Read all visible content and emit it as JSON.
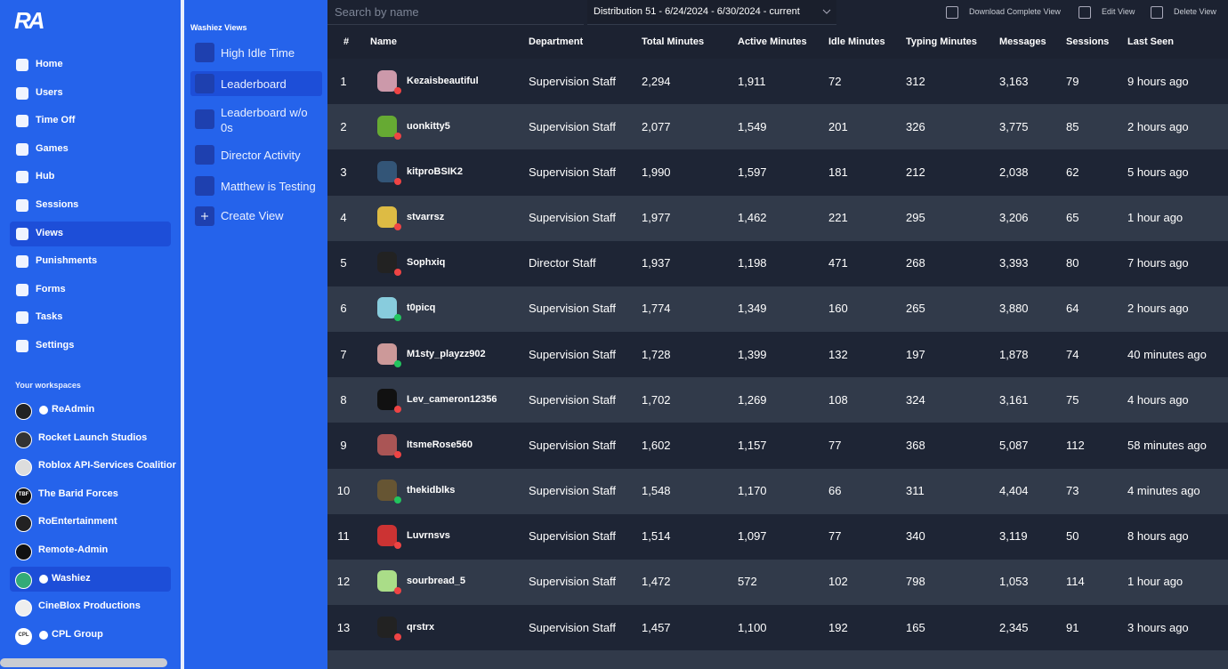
{
  "sidebar": {
    "logo": "RA",
    "nav": [
      "Home",
      "Users",
      "Time Off",
      "Games",
      "Hub",
      "Sessions",
      "Views",
      "Punishments",
      "Forms",
      "Tasks",
      "Settings"
    ],
    "active_nav": 6,
    "workspaces_title": "Your workspaces",
    "workspaces": [
      {
        "name": "ReAdmin",
        "verified": true
      },
      {
        "name": "Rocket Launch Studios",
        "verified": false
      },
      {
        "name": "Roblox API-Services Coalitior",
        "verified": false
      },
      {
        "name": "The Barid Forces",
        "verified": false,
        "icon_text": "TBF"
      },
      {
        "name": "RoEntertainment",
        "verified": false
      },
      {
        "name": "Remote-Admin",
        "verified": false
      },
      {
        "name": "Washiez",
        "verified": true
      },
      {
        "name": "CineBlox Productions",
        "verified": false
      },
      {
        "name": "CPL Group",
        "verified": true,
        "icon_text": "CPL"
      }
    ],
    "active_workspace": 6
  },
  "views_panel": {
    "title": "Washiez Views",
    "views": [
      "High Idle Time",
      "Leaderboard",
      "Leaderboard w/o 0s",
      "Director Activity",
      "Matthew is Testing"
    ],
    "active_view": 1,
    "create": "Create View"
  },
  "toolbar": {
    "search_placeholder": "Search by name",
    "distribution": "Distribution 51 - 6/24/2024 - 6/30/2024 - current",
    "actions": [
      "Download Complete View",
      "Edit View",
      "Delete View"
    ]
  },
  "table": {
    "columns": [
      "#",
      "Name",
      "Department",
      "Total Minutes",
      "Active Minutes",
      "Idle Minutes",
      "Typing Minutes",
      "Messages",
      "Sessions",
      "Last Seen"
    ],
    "sorted_column": 3,
    "rows": [
      [
        "1",
        "Kezaisbeautiful",
        "Supervision Staff",
        "2,294",
        "1,911",
        "72",
        "312",
        "3,163",
        "79",
        "9 hours ago"
      ],
      [
        "2",
        "uonkitty5",
        "Supervision Staff",
        "2,077",
        "1,549",
        "201",
        "326",
        "3,775",
        "85",
        "2 hours ago"
      ],
      [
        "3",
        "kitproBSIK2",
        "Supervision Staff",
        "1,990",
        "1,597",
        "181",
        "212",
        "2,038",
        "62",
        "5 hours ago"
      ],
      [
        "4",
        "stvarrsz",
        "Supervision Staff",
        "1,977",
        "1,462",
        "221",
        "295",
        "3,206",
        "65",
        "1 hour ago"
      ],
      [
        "5",
        "Sophxiq",
        "Director Staff",
        "1,937",
        "1,198",
        "471",
        "268",
        "3,393",
        "80",
        "7 hours ago"
      ],
      [
        "6",
        "t0picq",
        "Supervision Staff",
        "1,774",
        "1,349",
        "160",
        "265",
        "3,880",
        "64",
        "2 hours ago"
      ],
      [
        "7",
        "M1sty_playzz902",
        "Supervision Staff",
        "1,728",
        "1,399",
        "132",
        "197",
        "1,878",
        "74",
        "40 minutes ago"
      ],
      [
        "8",
        "Lev_cameron12356",
        "Supervision Staff",
        "1,702",
        "1,269",
        "108",
        "324",
        "3,161",
        "75",
        "4 hours ago"
      ],
      [
        "9",
        "ItsmeRose560",
        "Supervision Staff",
        "1,602",
        "1,157",
        "77",
        "368",
        "5,087",
        "112",
        "58 minutes ago"
      ],
      [
        "10",
        "thekidblks",
        "Supervision Staff",
        "1,548",
        "1,170",
        "66",
        "311",
        "4,404",
        "73",
        "4 minutes ago"
      ],
      [
        "11",
        "Luvrnsvs",
        "Supervision Staff",
        "1,514",
        "1,097",
        "77",
        "340",
        "3,119",
        "50",
        "8 hours ago"
      ],
      [
        "12",
        "sourbread_5",
        "Supervision Staff",
        "1,472",
        "572",
        "102",
        "798",
        "1,053",
        "114",
        "1 hour ago"
      ],
      [
        "13",
        "qrstrx",
        "Supervision Staff",
        "1,457",
        "1,100",
        "192",
        "165",
        "2,345",
        "91",
        "3 hours ago"
      ]
    ],
    "online": [
      false,
      false,
      false,
      false,
      false,
      true,
      true,
      false,
      false,
      true,
      false,
      false,
      false
    ]
  }
}
